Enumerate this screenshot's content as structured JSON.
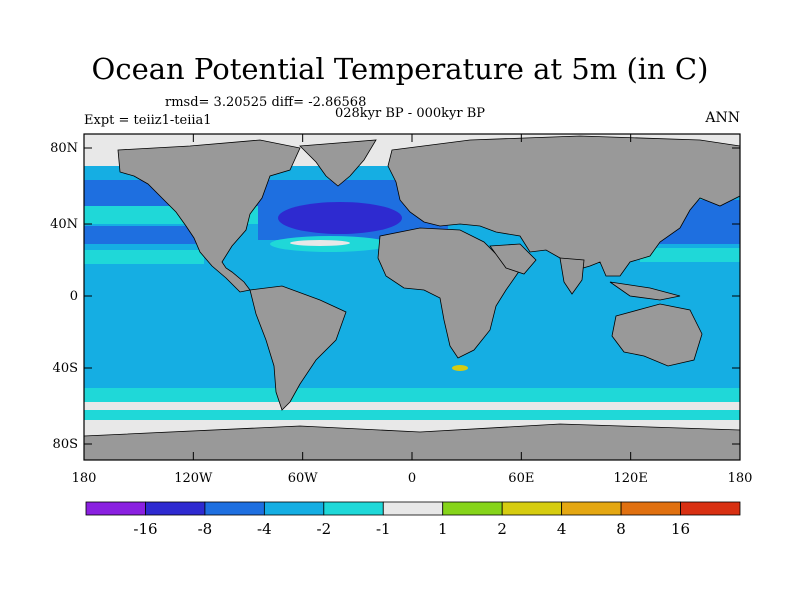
{
  "title": "Ocean Potential Temperature at 5m (in C)",
  "stats_line": "rmsd= 3.20525 diff= -2.86568",
  "subtitle": "028kyr BP - 000kyr BP",
  "experiment": "Expt = teiiz1-teiia1",
  "season": "ANN",
  "lat_ticks": [
    "80N",
    "40N",
    "0",
    "40S",
    "80S"
  ],
  "lon_ticks": [
    "180",
    "120W",
    "60W",
    "0",
    "60E",
    "120E",
    "180"
  ],
  "colorbar": {
    "colors": [
      "#8a20e0",
      "#2e2ad0",
      "#1e6fe0",
      "#15aee3",
      "#1fd8d8",
      "#e8e8e8",
      "#86d41a",
      "#d6cc10",
      "#e4a712",
      "#e07010",
      "#d83012"
    ],
    "labels": [
      "-16",
      "-8",
      "-4",
      "-2",
      "-1",
      "1",
      "2",
      "4",
      "8",
      "16"
    ]
  },
  "map_colors": {
    "land": "#999999",
    "ocean_main": "#15aee3",
    "ocean_cold": "#1e6fe0",
    "ocean_colder": "#2e2ad0",
    "ocean_mild": "#1fd8d8",
    "near_zero": "#e8e8e8",
    "warm_spot": "#d6cc10"
  }
}
